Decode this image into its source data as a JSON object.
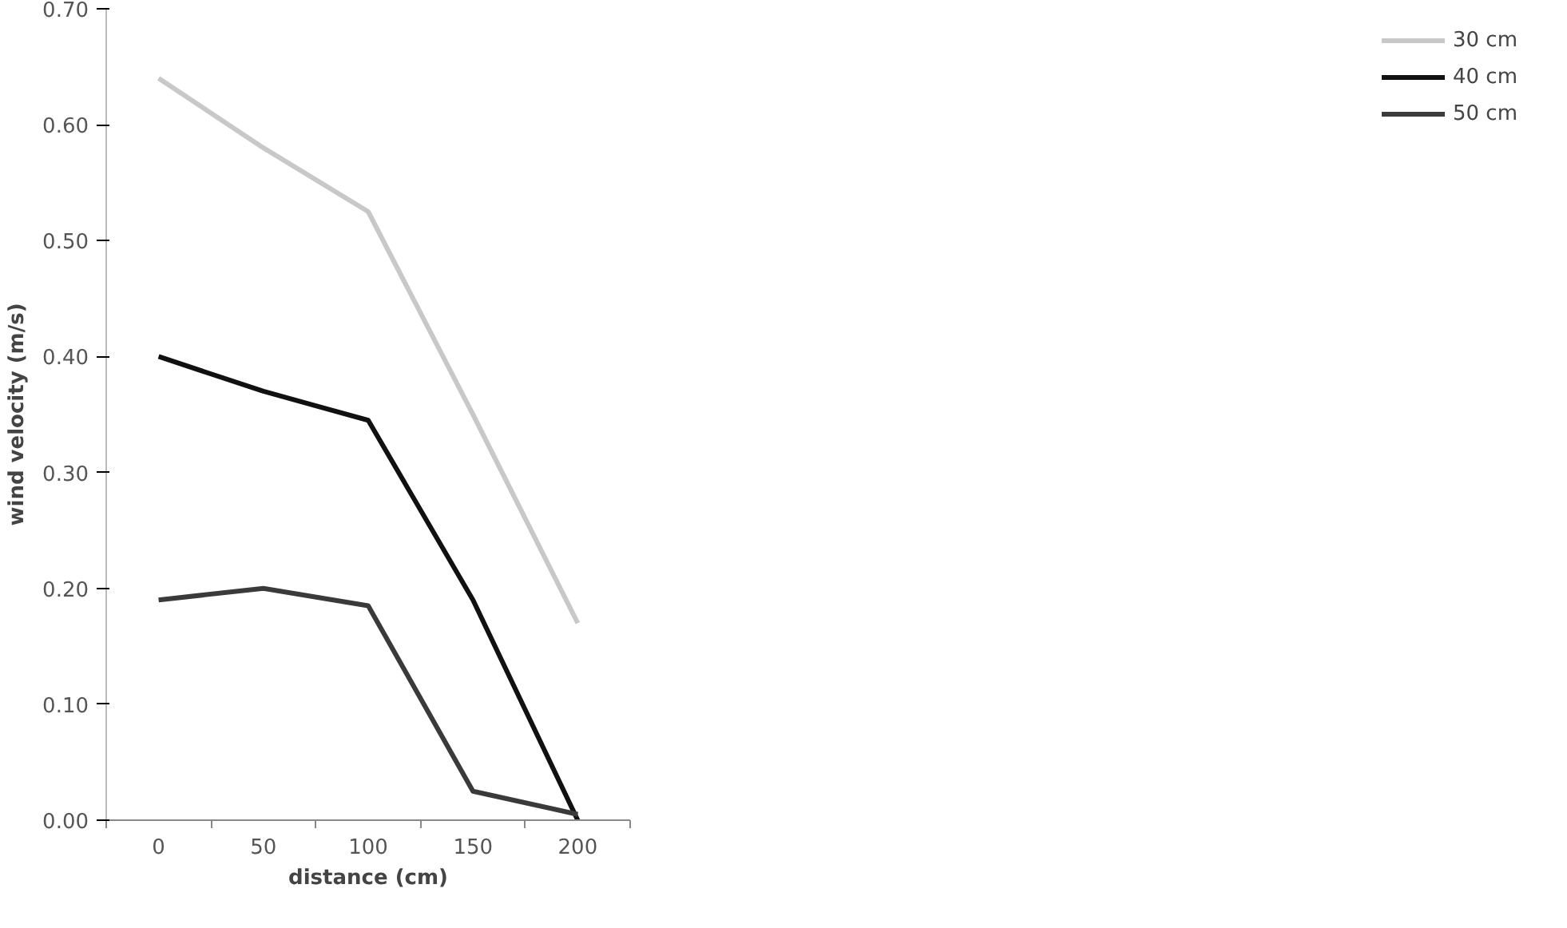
{
  "chart_data": {
    "type": "line",
    "xlabel": "distance (cm)",
    "ylabel": "wind velocity (m/s)",
    "categories": [
      "0",
      "50",
      "100",
      "150",
      "200"
    ],
    "ylim": [
      0,
      0.7
    ],
    "yticks": [
      {
        "value": 0,
        "label": "0.00"
      },
      {
        "value": 0.1,
        "label": "0.10"
      },
      {
        "value": 0.2,
        "label": "0.20"
      },
      {
        "value": 0.3,
        "label": "0.30"
      },
      {
        "value": 0.4,
        "label": "0.40"
      },
      {
        "value": 0.5,
        "label": "0.50"
      },
      {
        "value": 0.6,
        "label": "0.60"
      },
      {
        "value": 0.7,
        "label": "0.70"
      }
    ],
    "series": [
      {
        "name": "30 cm",
        "color": "#c8c8c8",
        "values": [
          0.64,
          0.58,
          0.525,
          0.35,
          0.17
        ]
      },
      {
        "name": "40 cm",
        "color": "#111111",
        "values": [
          0.4,
          0.37,
          0.345,
          0.19,
          0.0
        ]
      },
      {
        "name": "50 cm",
        "color": "#3a3a3a",
        "values": [
          0.19,
          0.2,
          0.185,
          0.025,
          0.005
        ]
      }
    ],
    "grid": false,
    "legend": "right",
    "marker": "none",
    "line_style": "solid"
  }
}
